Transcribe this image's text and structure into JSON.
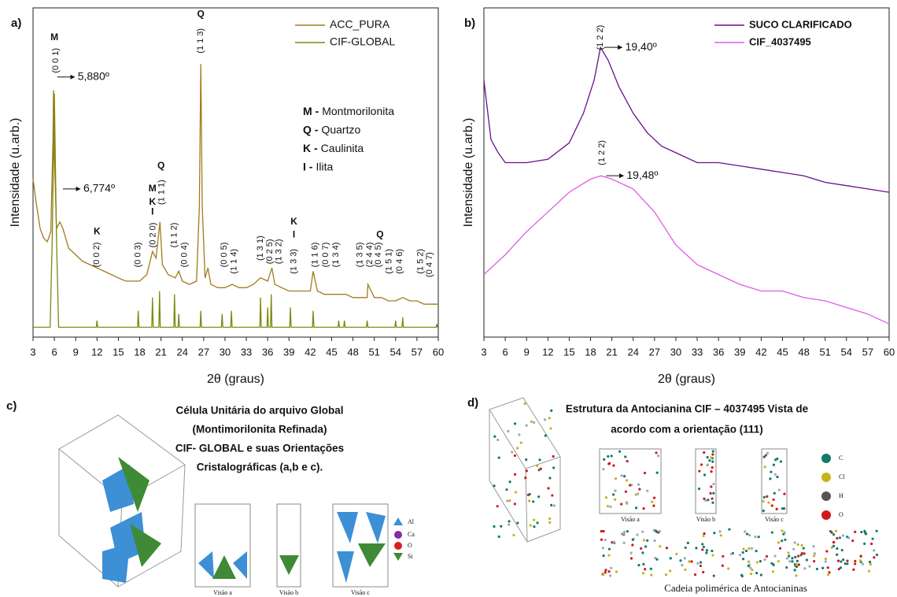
{
  "chart_data": [
    {
      "type": "line",
      "panel_label": "a)",
      "xlabel": "2θ (graus)",
      "ylabel": "Intensidade (u.arb.)",
      "xlim": [
        3,
        60
      ],
      "xticks": [
        3,
        6,
        9,
        12,
        15,
        18,
        21,
        24,
        27,
        30,
        33,
        36,
        39,
        42,
        45,
        48,
        51,
        54,
        57,
        60
      ],
      "ylim": [
        0,
        100
      ],
      "legend": "upper right",
      "series": [
        {
          "name": "ACC_PURA",
          "color": "#a47a1c",
          "x": [
            3,
            3.5,
            4,
            4.5,
            5,
            5.5,
            5.8,
            5.88,
            6,
            6.3,
            6.774,
            7.2,
            8,
            9,
            10,
            11,
            12,
            13,
            14,
            15,
            16,
            17,
            18,
            19,
            19.8,
            20.3,
            20.85,
            21.2,
            22,
            23,
            23.5,
            24,
            25,
            26,
            26.4,
            26.6,
            26.8,
            27.2,
            27.6,
            28,
            29,
            30,
            31,
            32,
            33,
            34,
            35,
            36,
            36.6,
            37,
            38,
            39,
            40,
            41,
            42,
            42.4,
            43,
            44,
            45,
            46,
            47,
            48,
            49,
            50,
            50.1,
            51,
            52,
            53,
            54,
            55,
            56,
            57,
            58,
            59,
            60
          ],
          "values": [
            48,
            40,
            33,
            30,
            29,
            32,
            60,
            75,
            55,
            33,
            35,
            33,
            27,
            25,
            23,
            22,
            21,
            20,
            19,
            18,
            17,
            17,
            17,
            19,
            26,
            24,
            35,
            22,
            19,
            18,
            20,
            17,
            16,
            17,
            40,
            83,
            40,
            18,
            21,
            16,
            15,
            15,
            16,
            15,
            15,
            16,
            18,
            17,
            21,
            16,
            15,
            14,
            14,
            14,
            14,
            20,
            14,
            13,
            13,
            13,
            13,
            12,
            12,
            12,
            16,
            12,
            12,
            11,
            11,
            12,
            11,
            11,
            10,
            10,
            10
          ]
        },
        {
          "name": "CIF-GLOBAL",
          "color": "#7d8a10",
          "x": [
            3,
            5.4,
            5.7,
            6,
            6.3,
            6.6,
            11.9,
            12,
            12.1,
            17.7,
            17.8,
            17.9,
            19.7,
            19.8,
            19.9,
            20.7,
            20.8,
            20.9,
            22.8,
            22.9,
            23,
            23.4,
            23.5,
            23.6,
            26.5,
            26.6,
            26.7,
            29.5,
            29.6,
            29.7,
            30.8,
            30.9,
            31,
            34.9,
            35,
            35.1,
            35.9,
            36,
            36.1,
            36.4,
            36.5,
            36.6,
            39.1,
            39.2,
            39.3,
            42.3,
            42.4,
            42.5,
            45.9,
            46,
            46.1,
            46.7,
            46.8,
            46.9,
            49.9,
            50,
            50.1,
            53.9,
            54,
            54.1,
            54.9,
            55,
            55.1,
            59.7,
            59.8,
            59.9,
            60
          ],
          "values": [
            3,
            3,
            30,
            74,
            30,
            3,
            3,
            5,
            3,
            3,
            8,
            3,
            3,
            12,
            3,
            3,
            14,
            3,
            3,
            13,
            3,
            3,
            7,
            3,
            3,
            8,
            3,
            3,
            7,
            3,
            3,
            8,
            3,
            3,
            12,
            3,
            3,
            9,
            3,
            3,
            13,
            3,
            3,
            9,
            3,
            3,
            8,
            3,
            3,
            5,
            3,
            3,
            5,
            3,
            3,
            5,
            3,
            3,
            5,
            3,
            3,
            6,
            3,
            3,
            4,
            3,
            3
          ]
        }
      ],
      "phase_key": [
        {
          "symbol": "M -",
          "name": "Montmorilonita"
        },
        {
          "symbol": "Q -",
          "name": "Quartzo"
        },
        {
          "symbol": "K -",
          "name": "Caulinita"
        },
        {
          "symbol": "I -",
          "name": "Ilita"
        }
      ],
      "annotations": [
        {
          "text": "M",
          "x": 6,
          "y": 91
        },
        {
          "text": "(0 0 1)",
          "x": 6.2,
          "y": 84,
          "rotate": true
        },
        {
          "text": "5,880º",
          "x": 6.4,
          "y": 79,
          "arrow": true
        },
        {
          "text": "6,774º",
          "x": 7.2,
          "y": 45,
          "arrow": true
        },
        {
          "text": "K",
          "x": 12,
          "y": 32
        },
        {
          "text": "(0 0 2)",
          "x": 12,
          "y": 25,
          "rotate": true
        },
        {
          "text": "(0 0 3)",
          "x": 17.8,
          "y": 25,
          "rotate": true
        },
        {
          "text": "M",
          "x": 19.8,
          "y": 45
        },
        {
          "text": "K",
          "x": 19.8,
          "y": 41
        },
        {
          "text": "I",
          "x": 19.8,
          "y": 38
        },
        {
          "text": "(0 2 0)",
          "x": 19.9,
          "y": 31,
          "rotate": true
        },
        {
          "text": "Q",
          "x": 21,
          "y": 52
        },
        {
          "text": "(1 1 1)",
          "x": 21.1,
          "y": 44,
          "rotate": true
        },
        {
          "text": "(1 1 2)",
          "x": 22.9,
          "y": 31,
          "rotate": true
        },
        {
          "text": "(0 0 4)",
          "x": 24.3,
          "y": 25,
          "rotate": true
        },
        {
          "text": "Q",
          "x": 26.6,
          "y": 98
        },
        {
          "text": "(1 1 3)",
          "x": 26.6,
          "y": 90,
          "rotate": true
        },
        {
          "text": "(0 0 5)",
          "x": 29.9,
          "y": 25,
          "rotate": true
        },
        {
          "text": "(1 1 4)",
          "x": 31.3,
          "y": 23,
          "rotate": true
        },
        {
          "text": "(1 3 1)",
          "x": 35,
          "y": 27,
          "rotate": true
        },
        {
          "text": "(0 2 5)",
          "x": 36.3,
          "y": 26,
          "rotate": true
        },
        {
          "text": "(1 3 2)",
          "x": 37.6,
          "y": 26,
          "rotate": true
        },
        {
          "text": "K",
          "x": 39.7,
          "y": 35
        },
        {
          "text": "I",
          "x": 39.7,
          "y": 31
        },
        {
          "text": "(1 3 3)",
          "x": 39.7,
          "y": 23,
          "rotate": true
        },
        {
          "text": "(1 1 6)",
          "x": 42.7,
          "y": 25,
          "rotate": true
        },
        {
          "text": "(0 0 7)",
          "x": 44.2,
          "y": 25,
          "rotate": true
        },
        {
          "text": "(1 3 4)",
          "x": 45.6,
          "y": 25,
          "rotate": true
        },
        {
          "text": "(1 3 5)",
          "x": 49,
          "y": 25,
          "rotate": true
        },
        {
          "text": "(2 4 4)",
          "x": 50.4,
          "y": 25,
          "rotate": true
        },
        {
          "text": "Q",
          "x": 51.8,
          "y": 31
        },
        {
          "text": "(0 4 5)",
          "x": 51.6,
          "y": 25,
          "rotate": true
        },
        {
          "text": "(1 5 1)",
          "x": 53.1,
          "y": 23,
          "rotate": true
        },
        {
          "text": "(0 4 6)",
          "x": 54.6,
          "y": 23,
          "rotate": true
        },
        {
          "text": "(1 5 2)",
          "x": 57.5,
          "y": 23,
          "rotate": true
        },
        {
          "text": "(0 4 7)",
          "x": 58.8,
          "y": 22,
          "rotate": true
        }
      ]
    },
    {
      "type": "line",
      "panel_label": "b)",
      "xlabel": "2θ (graus)",
      "ylabel": "Intensidade (u.arb.)",
      "xlim": [
        3,
        60
      ],
      "xticks": [
        3,
        6,
        9,
        12,
        15,
        18,
        21,
        24,
        27,
        30,
        33,
        36,
        39,
        42,
        45,
        48,
        51,
        54,
        57,
        60
      ],
      "ylim": [
        0,
        100
      ],
      "legend": "upper right",
      "series": [
        {
          "name": "SUCO CLARIFICADO",
          "color": "#6b0f8c",
          "x": [
            3,
            4,
            5,
            6,
            9,
            12,
            15,
            17,
            18.5,
            19.4,
            20.5,
            22,
            24,
            26,
            28,
            30,
            33,
            36,
            39,
            42,
            45,
            48,
            51,
            54,
            57,
            60
          ],
          "values": [
            78,
            60,
            56,
            53,
            53,
            54,
            59,
            68,
            78,
            88,
            84,
            76,
            68,
            62,
            58,
            56,
            53,
            53,
            52,
            51,
            50,
            49,
            47,
            46,
            45,
            44
          ]
        },
        {
          "name": "CIF_4037495",
          "color": "#e05ae8",
          "x": [
            3,
            6,
            9,
            12,
            15,
            18,
            19.48,
            21,
            24,
            27,
            30,
            33,
            36,
            39,
            42,
            45,
            48,
            51,
            54,
            57,
            60
          ],
          "values": [
            19,
            25,
            32,
            38,
            44,
            48,
            49,
            48,
            45,
            38,
            28,
            22,
            19,
            16,
            14,
            14,
            12,
            11,
            9,
            7,
            4
          ]
        }
      ],
      "annotations": [
        {
          "text": "(1 2 2)",
          "x": 19.4,
          "y": 91,
          "rotate": true
        },
        {
          "text": "19,40º",
          "x": 20,
          "y": 88,
          "arrow": true
        },
        {
          "text": "(1 2 2)",
          "x": 19.6,
          "y": 56,
          "rotate": true
        },
        {
          "text": "19,48º",
          "x": 20.2,
          "y": 49,
          "arrow": true
        }
      ]
    }
  ],
  "panels": [
    {
      "label": "c)",
      "title": [
        "Célula Unitária do arquivo Global",
        "(Montimorilonita Refinada)",
        "CIF- GLOBAL e suas  Orientações",
        "Cristalográficas (a,b e c)."
      ],
      "legend": [
        "Al",
        "Ca",
        "O",
        "Si"
      ],
      "views": [
        "Visão a",
        "Visão b",
        "Visão c"
      ]
    },
    {
      "label": "d)",
      "title": [
        "Estrutura da Antocianina CIF – 4037495 Vista de",
        "acordo com a orientação (111)"
      ],
      "legend": [
        "C",
        "Cl",
        "H",
        "O"
      ],
      "views": [
        "Visão a",
        "Visão b",
        "Visão c"
      ],
      "caption": "Cadeia polimérica  de Antocianinas"
    }
  ]
}
